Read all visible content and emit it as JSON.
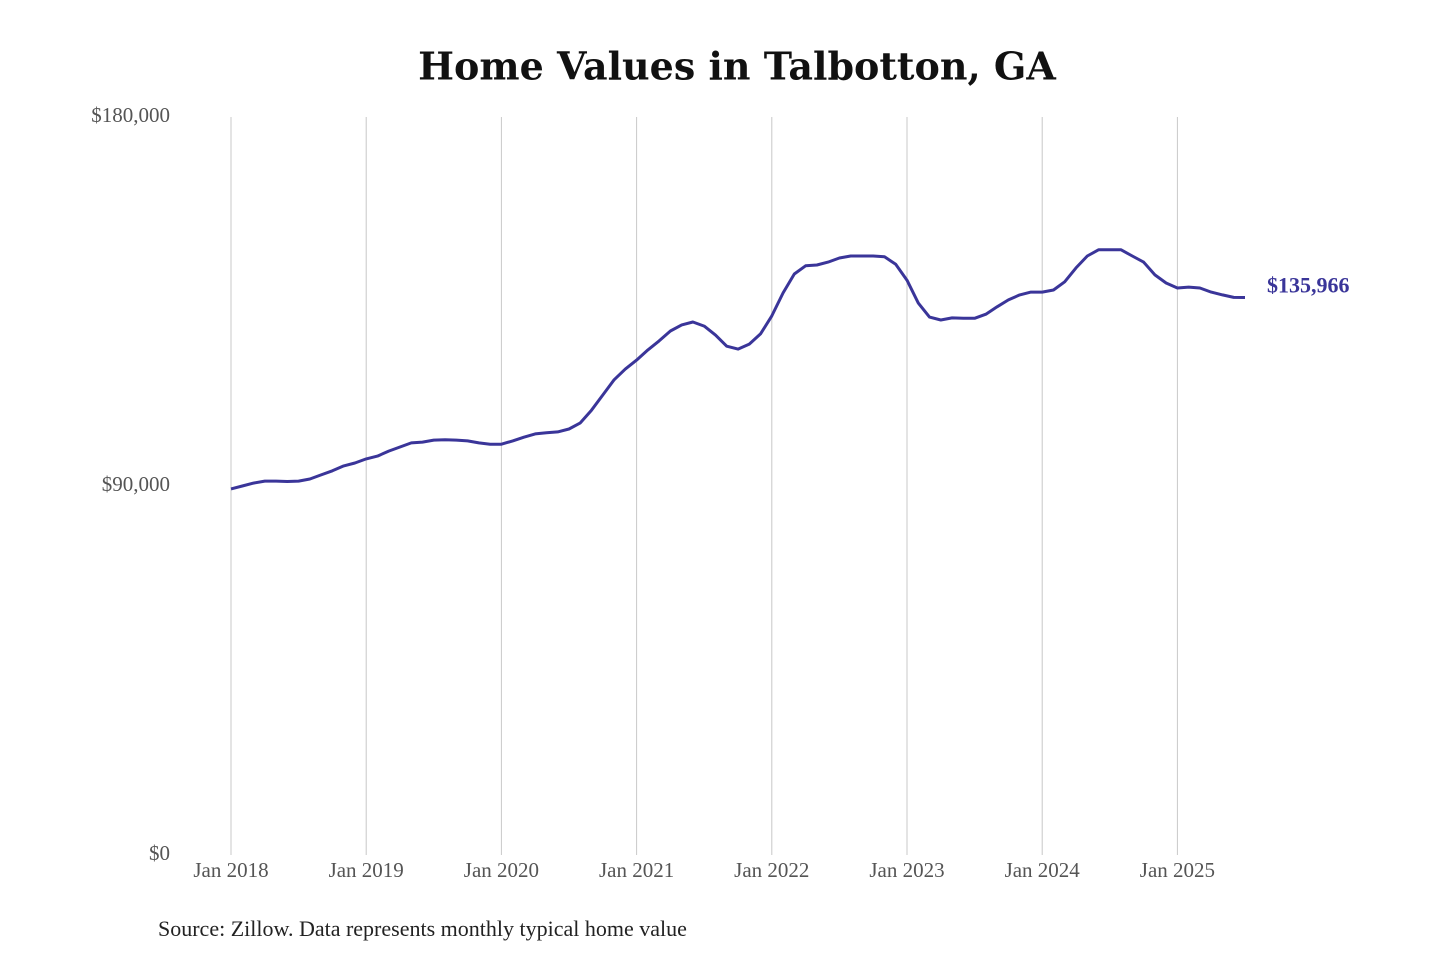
{
  "chart_data": {
    "type": "line",
    "title": "Home Values in Talbotton, GA",
    "source": "Source: Zillow. Data represents monthly typical home value",
    "x": [
      "2018-01",
      "2018-02",
      "2018-03",
      "2018-04",
      "2018-05",
      "2018-06",
      "2018-07",
      "2018-08",
      "2018-09",
      "2018-10",
      "2018-11",
      "2018-12",
      "2019-01",
      "2019-02",
      "2019-03",
      "2019-04",
      "2019-05",
      "2019-06",
      "2019-07",
      "2019-08",
      "2019-09",
      "2019-10",
      "2019-11",
      "2019-12",
      "2020-01",
      "2020-02",
      "2020-03",
      "2020-04",
      "2020-05",
      "2020-06",
      "2020-07",
      "2020-08",
      "2020-09",
      "2020-10",
      "2020-11",
      "2020-12",
      "2021-01",
      "2021-02",
      "2021-03",
      "2021-04",
      "2021-05",
      "2021-06",
      "2021-07",
      "2021-08",
      "2021-09",
      "2021-10",
      "2021-11",
      "2021-12",
      "2022-01",
      "2022-02",
      "2022-03",
      "2022-04",
      "2022-05",
      "2022-06",
      "2022-07",
      "2022-08",
      "2022-09",
      "2022-10",
      "2022-11",
      "2022-12",
      "2023-01",
      "2023-02",
      "2023-03",
      "2023-04",
      "2023-05",
      "2023-06",
      "2023-07",
      "2023-08",
      "2023-09",
      "2023-10",
      "2023-11",
      "2023-12",
      "2024-01",
      "2024-02",
      "2024-03",
      "2024-04",
      "2024-05",
      "2024-06",
      "2024-07",
      "2024-08",
      "2024-09",
      "2024-10",
      "2024-11",
      "2024-12",
      "2025-01",
      "2025-02",
      "2025-03",
      "2025-04",
      "2025-05",
      "2025-06",
      "2025-07"
    ],
    "series": [
      {
        "color": "#3a3599",
        "values": [
          89300,
          90000,
          90700,
          91200,
          91200,
          91100,
          91200,
          91700,
          92700,
          93700,
          94900,
          95600,
          96600,
          97300,
          98500,
          99500,
          100500,
          100700,
          101200,
          101300,
          101200,
          101000,
          100500,
          100200,
          100200,
          101000,
          101900,
          102700,
          103000,
          103200,
          103900,
          105400,
          108500,
          112200,
          115900,
          118500,
          120700,
          123200,
          125400,
          127800,
          129300,
          130000,
          129000,
          126800,
          124100,
          123400,
          124600,
          127100,
          131500,
          137100,
          141700,
          143700,
          143900,
          144600,
          145600,
          146100,
          146100,
          146100,
          145900,
          144100,
          140200,
          134600,
          131200,
          130500,
          131000,
          130900,
          130900,
          131900,
          133700,
          135400,
          136600,
          137300,
          137300,
          137800,
          139800,
          143200,
          146100,
          147600,
          147600,
          147600,
          146100,
          144600,
          141500,
          139500,
          138300,
          138500,
          138300,
          137300,
          136600,
          136000,
          135966
        ],
        "value_labels": [
          null,
          null,
          null,
          null,
          null,
          null,
          null,
          null,
          null,
          null,
          null,
          null,
          null,
          null,
          null,
          null,
          null,
          null,
          null,
          null,
          null,
          null,
          null,
          null,
          null,
          null,
          null,
          null,
          null,
          null,
          null,
          null,
          null,
          null,
          null,
          null,
          null,
          null,
          null,
          null,
          null,
          null,
          null,
          null,
          null,
          null,
          null,
          null,
          null,
          null,
          null,
          null,
          null,
          null,
          null,
          null,
          null,
          null,
          null,
          null,
          null,
          null,
          null,
          null,
          null,
          null,
          null,
          null,
          null,
          null,
          null,
          null,
          null,
          null,
          null,
          null,
          null,
          null,
          null,
          null,
          null,
          null,
          null,
          null,
          null,
          null,
          null,
          null,
          null,
          null,
          "$135,966"
        ]
      }
    ],
    "xlim": [
      "2018-01",
      "2025-07"
    ],
    "xticks": [
      {
        "value": "2018-01",
        "label": "Jan 2018"
      },
      {
        "value": "2019-01",
        "label": "Jan 2019"
      },
      {
        "value": "2020-01",
        "label": "Jan 2020"
      },
      {
        "value": "2021-01",
        "label": "Jan 2021"
      },
      {
        "value": "2022-01",
        "label": "Jan 2022"
      },
      {
        "value": "2023-01",
        "label": "Jan 2023"
      },
      {
        "value": "2024-01",
        "label": "Jan 2024"
      },
      {
        "value": "2025-01",
        "label": "Jan 2025"
      }
    ],
    "ylim": [
      0,
      180000
    ],
    "yticks": [
      {
        "value": 0,
        "label": "$0"
      },
      {
        "value": 90000,
        "label": "$90,000"
      },
      {
        "value": 180000,
        "label": "$180,000"
      }
    ],
    "grid": "x"
  }
}
